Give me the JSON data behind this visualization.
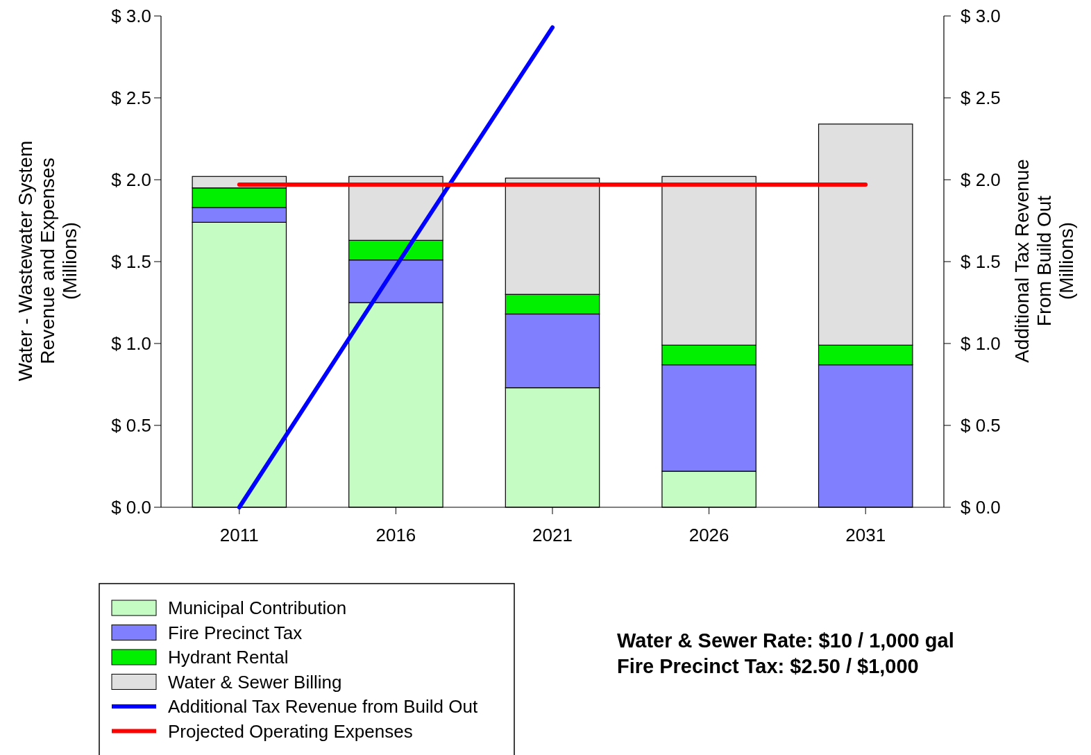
{
  "chart_data": {
    "type": "bar",
    "stacked": true,
    "categories": [
      "2011",
      "2016",
      "2021",
      "2026",
      "2031"
    ],
    "series": [
      {
        "name": "Municipal Contribution",
        "color": "#c4fcc4",
        "values": [
          1.74,
          1.25,
          0.73,
          0.22,
          0
        ]
      },
      {
        "name": "Fire Precinct Tax",
        "color": "#8080ff",
        "values": [
          0.09,
          0.26,
          0.45,
          0.65,
          0.87
        ]
      },
      {
        "name": "Hydrant Rental",
        "color": "#00f000",
        "values": [
          0.12,
          0.12,
          0.12,
          0.12,
          0.12
        ]
      },
      {
        "name": "Water & Sewer Billing",
        "color": "#e0e0e0",
        "values": [
          0.07,
          0.39,
          0.71,
          1.03,
          1.35
        ]
      },
      {
        "name": "Additional Tax Revenue from Build Out",
        "type": "line",
        "color": "#0000ff",
        "values": [
          0,
          1.47,
          2.93,
          null,
          null
        ]
      },
      {
        "name": "Projected Operating Expenses",
        "type": "line",
        "color": "#ff0000",
        "values": [
          1.97,
          1.97,
          1.97,
          1.97,
          1.97
        ]
      }
    ],
    "ylim": [
      0,
      3
    ],
    "yticks": [
      {
        "value": 0,
        "label": "$ 0.0"
      },
      {
        "value": 0.5,
        "label": "$ 0.5"
      },
      {
        "value": 1,
        "label": "$ 1.0"
      },
      {
        "value": 1.5,
        "label": "$ 1.5"
      },
      {
        "value": 2,
        "label": "$ 2.0"
      },
      {
        "value": 2.5,
        "label": "$ 2.5"
      },
      {
        "value": 3,
        "label": "$ 3.0"
      }
    ],
    "y2lim": [
      0,
      3
    ],
    "y2ticks": [
      {
        "value": 0,
        "label": "$ 0.0"
      },
      {
        "value": 0.5,
        "label": "$ 0.5"
      },
      {
        "value": 1,
        "label": "$ 1.0"
      },
      {
        "value": 1.5,
        "label": "$ 1.5"
      },
      {
        "value": 2,
        "label": "$ 2.0"
      },
      {
        "value": 2.5,
        "label": "$ 2.5"
      },
      {
        "value": 3,
        "label": "$ 3.0"
      }
    ],
    "ylabel": "Water - Wastewater System\nRevenue and Expenses\n(Millions)",
    "y2label": "Additional Tax Revenue\nFrom Build Out\n(Millions)",
    "legend": "bottom left",
    "grid": false,
    "annotations": [
      "Water & Sewer Rate: $10 / 1,000 gal",
      "Fire Precinct Tax: $2.50 / $1,000"
    ]
  }
}
